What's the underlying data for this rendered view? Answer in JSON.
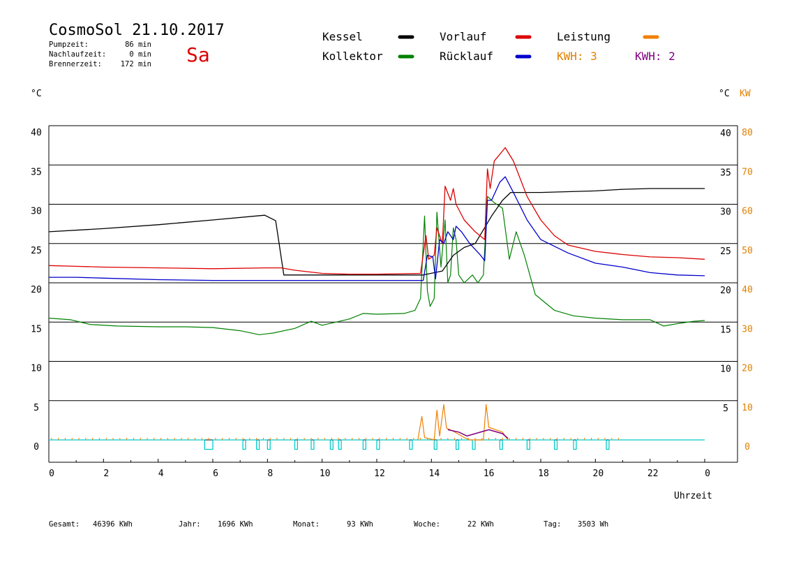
{
  "header": {
    "title": "CosmoSol 21.10.2017",
    "day": "Sa",
    "stats": [
      {
        "label": "Pumpzeit:",
        "value": "86 min"
      },
      {
        "label": "Nachlaufzeit:",
        "value": "0 min"
      },
      {
        "label": "Brennerzeit:",
        "value": "172 min"
      }
    ]
  },
  "legend": {
    "kessel": {
      "label": "Kessel",
      "color": "#000000"
    },
    "vorlauf": {
      "label": "Vorlauf",
      "color": "#dd0000"
    },
    "leistung": {
      "label": "Leistung",
      "color": "#f08000"
    },
    "kollektor": {
      "label": "Kollektor",
      "color": "#008000"
    },
    "ruecklauf": {
      "label": "Rücklauf",
      "color": "#0000cc"
    },
    "kwh1": {
      "label": "KWH: 3",
      "color": "#e08000"
    },
    "kwh2": {
      "label": "KWH: 2",
      "color": "#800080"
    }
  },
  "axes": {
    "left_unit": "°C",
    "right_unit_temp": "°C",
    "right_unit_power": "KW",
    "xlabel": "Uhrzeit"
  },
  "footer": {
    "gesamt": {
      "label": "Gesamt:",
      "value": "46396 KWh"
    },
    "jahr": {
      "label": "Jahr:",
      "value": "1696 KWh"
    },
    "monat": {
      "label": "Monat:",
      "value": "93 KWh"
    },
    "woche": {
      "label": "Woche:",
      "value": "22 KWh"
    },
    "tag": {
      "label": "Tag:",
      "value": "3503 Wh"
    }
  },
  "chart_data": {
    "type": "line",
    "x_ticks": [
      "0",
      "2",
      "4",
      "6",
      "8",
      "10",
      "12",
      "14",
      "16",
      "18",
      "20",
      "22",
      "0"
    ],
    "x_range": [
      0,
      24
    ],
    "y_ticks_left": [
      "0",
      "5",
      "10",
      "15",
      "20",
      "25",
      "30",
      "35",
      "40"
    ],
    "y_ticks_right_temp": [
      "5",
      "10",
      "15",
      "20",
      "25",
      "30",
      "35",
      "40"
    ],
    "y_ticks_right_power": [
      "0",
      "10",
      "20",
      "30",
      "40",
      "50",
      "60",
      "70",
      "80"
    ],
    "ylim": [
      0,
      40
    ],
    "grid": true,
    "colors": {
      "kessel": "#000000",
      "vorlauf": "#dd0000",
      "ruecklauf": "#0000cc",
      "kollektor": "#008000",
      "leistung": "#f08000",
      "kwh": "#800080",
      "pumpe": "#00cccc"
    },
    "series": {
      "kessel": [
        [
          0,
          26.5
        ],
        [
          2,
          26.9
        ],
        [
          4,
          27.4
        ],
        [
          6,
          28
        ],
        [
          7.9,
          28.6
        ],
        [
          8.3,
          27.9
        ],
        [
          8.6,
          21
        ],
        [
          10,
          21
        ],
        [
          12,
          21
        ],
        [
          13.7,
          21
        ],
        [
          14.4,
          21.5
        ],
        [
          14.8,
          23.5
        ],
        [
          15.2,
          24.5
        ],
        [
          15.6,
          25
        ],
        [
          16.2,
          28.5
        ],
        [
          16.6,
          30.5
        ],
        [
          16.9,
          31.5
        ],
        [
          18,
          31.5
        ],
        [
          20,
          31.7
        ],
        [
          21,
          31.9
        ],
        [
          22,
          32
        ],
        [
          24,
          32
        ]
      ],
      "vorlauf": [
        [
          0,
          22.2
        ],
        [
          1,
          22.1
        ],
        [
          2,
          22
        ],
        [
          4,
          21.9
        ],
        [
          6,
          21.8
        ],
        [
          8,
          21.9
        ],
        [
          8.5,
          21.9
        ],
        [
          9,
          21.6
        ],
        [
          10,
          21.2
        ],
        [
          11,
          21.1
        ],
        [
          12,
          21.1
        ],
        [
          13.6,
          21.2
        ],
        [
          13.8,
          26
        ],
        [
          13.9,
          23
        ],
        [
          14.1,
          23.5
        ],
        [
          14.2,
          27
        ],
        [
          14.4,
          25
        ],
        [
          14.5,
          32.3
        ],
        [
          14.7,
          30.5
        ],
        [
          14.8,
          32
        ],
        [
          14.9,
          30
        ],
        [
          15.2,
          28
        ],
        [
          15.6,
          26.5
        ],
        [
          15.95,
          25.5
        ],
        [
          16.05,
          34.5
        ],
        [
          16.15,
          32
        ],
        [
          16.3,
          35.5
        ],
        [
          16.7,
          37.2
        ],
        [
          17,
          35.5
        ],
        [
          17.5,
          31
        ],
        [
          18,
          28
        ],
        [
          18.5,
          26
        ],
        [
          19,
          24.8
        ],
        [
          20,
          24
        ],
        [
          21,
          23.6
        ],
        [
          22,
          23.3
        ],
        [
          23,
          23.2
        ],
        [
          24,
          23
        ]
      ],
      "ruecklauf": [
        [
          0,
          20.7
        ],
        [
          1,
          20.7
        ],
        [
          2,
          20.6
        ],
        [
          4,
          20.4
        ],
        [
          6,
          20.3
        ],
        [
          8,
          20.3
        ],
        [
          10,
          20.3
        ],
        [
          12,
          20.3
        ],
        [
          13.7,
          20.3
        ],
        [
          13.85,
          23.5
        ],
        [
          14.05,
          23.3
        ],
        [
          14.15,
          20.5
        ],
        [
          14.3,
          25.5
        ],
        [
          14.45,
          25
        ],
        [
          14.6,
          26.5
        ],
        [
          14.8,
          25.5
        ],
        [
          14.9,
          27.2
        ],
        [
          15.1,
          26.5
        ],
        [
          15.4,
          25
        ],
        [
          15.8,
          23.5
        ],
        [
          15.95,
          22.8
        ],
        [
          16.05,
          30.5
        ],
        [
          16.2,
          30.5
        ],
        [
          16.5,
          32.8
        ],
        [
          16.7,
          33.5
        ],
        [
          17,
          31.5
        ],
        [
          17.5,
          28
        ],
        [
          18,
          25.5
        ],
        [
          19,
          23.8
        ],
        [
          20,
          22.5
        ],
        [
          21,
          22
        ],
        [
          22,
          21.3
        ],
        [
          23,
          21
        ],
        [
          24,
          20.9
        ]
      ],
      "kollektor": [
        [
          0,
          15.5
        ],
        [
          0.8,
          15.3
        ],
        [
          1.5,
          14.7
        ],
        [
          2.5,
          14.5
        ],
        [
          4,
          14.4
        ],
        [
          5,
          14.4
        ],
        [
          6,
          14.3
        ],
        [
          7,
          13.9
        ],
        [
          7.7,
          13.4
        ],
        [
          8.2,
          13.6
        ],
        [
          9,
          14.2
        ],
        [
          9.6,
          15.1
        ],
        [
          10,
          14.6
        ],
        [
          10.5,
          15
        ],
        [
          11,
          15.4
        ],
        [
          11.5,
          16.1
        ],
        [
          12,
          16
        ],
        [
          13,
          16.1
        ],
        [
          13.4,
          16.5
        ],
        [
          13.6,
          18
        ],
        [
          13.75,
          28.5
        ],
        [
          13.85,
          19
        ],
        [
          13.95,
          17
        ],
        [
          14.1,
          18
        ],
        [
          14.2,
          29
        ],
        [
          14.35,
          22
        ],
        [
          14.5,
          28
        ],
        [
          14.6,
          20
        ],
        [
          14.7,
          21
        ],
        [
          14.8,
          27
        ],
        [
          14.9,
          25.5
        ],
        [
          15,
          21
        ],
        [
          15.2,
          20
        ],
        [
          15.5,
          21
        ],
        [
          15.7,
          20
        ],
        [
          15.9,
          21
        ],
        [
          16.05,
          31
        ],
        [
          16.3,
          30.2
        ],
        [
          16.6,
          29.5
        ],
        [
          16.85,
          23
        ],
        [
          17.1,
          26.5
        ],
        [
          17.4,
          23.5
        ],
        [
          17.8,
          18.5
        ],
        [
          18.5,
          16.5
        ],
        [
          19.2,
          15.8
        ],
        [
          20,
          15.5
        ],
        [
          21,
          15.3
        ],
        [
          22,
          15.3
        ],
        [
          22.5,
          14.5
        ],
        [
          23,
          14.8
        ],
        [
          23.6,
          15.1
        ],
        [
          24,
          15.2
        ]
      ],
      "leistung": [
        [
          13.5,
          0
        ],
        [
          13.65,
          3
        ],
        [
          13.75,
          0.3
        ],
        [
          14.1,
          0
        ],
        [
          14.2,
          3.8
        ],
        [
          14.3,
          0.5
        ],
        [
          14.45,
          4.5
        ],
        [
          14.55,
          1.5
        ],
        [
          14.8,
          1.1
        ],
        [
          15.2,
          0.3
        ],
        [
          15.4,
          0
        ],
        [
          15.9,
          0
        ],
        [
          16.0,
          4.5
        ],
        [
          16.1,
          1.6
        ],
        [
          16.6,
          1
        ],
        [
          16.8,
          0
        ]
      ],
      "kwh": [
        [
          14.6,
          1.3
        ],
        [
          15,
          1
        ],
        [
          15.3,
          0.5
        ],
        [
          16.1,
          1.3
        ],
        [
          16.6,
          0.8
        ],
        [
          16.8,
          0.2
        ]
      ],
      "pumpe": [
        [
          0,
          0
        ],
        [
          5.7,
          0
        ],
        [
          5.7,
          -1.2
        ],
        [
          6.0,
          -1.2
        ],
        [
          6.0,
          0
        ],
        [
          7.1,
          0
        ],
        [
          7.1,
          -1.2
        ],
        [
          7.2,
          -1.2
        ],
        [
          7.2,
          0
        ],
        [
          7.6,
          0
        ],
        [
          7.6,
          -1.2
        ],
        [
          7.7,
          -1.2
        ],
        [
          7.7,
          0
        ],
        [
          8.0,
          0
        ],
        [
          8.0,
          -1.2
        ],
        [
          8.1,
          -1.2
        ],
        [
          8.1,
          0
        ],
        [
          9.0,
          0
        ],
        [
          9.0,
          -1.2
        ],
        [
          9.1,
          -1.2
        ],
        [
          9.1,
          0
        ],
        [
          9.6,
          0
        ],
        [
          9.6,
          -1.2
        ],
        [
          9.7,
          -1.2
        ],
        [
          9.7,
          0
        ],
        [
          10.3,
          0
        ],
        [
          10.3,
          -1.2
        ],
        [
          10.4,
          -1.2
        ],
        [
          10.4,
          0
        ],
        [
          10.6,
          0
        ],
        [
          10.6,
          -1.2
        ],
        [
          10.7,
          -1.2
        ],
        [
          10.7,
          0
        ],
        [
          11.5,
          0
        ],
        [
          11.5,
          -1.2
        ],
        [
          11.6,
          -1.2
        ],
        [
          11.6,
          0
        ],
        [
          12.0,
          0
        ],
        [
          12.0,
          -1.2
        ],
        [
          12.1,
          -1.2
        ],
        [
          12.1,
          0
        ],
        [
          13.2,
          0
        ],
        [
          13.2,
          -1.2
        ],
        [
          13.3,
          -1.2
        ],
        [
          13.3,
          0
        ],
        [
          14.1,
          0
        ],
        [
          14.1,
          -1.2
        ],
        [
          14.2,
          -1.2
        ],
        [
          14.2,
          0
        ],
        [
          14.9,
          0
        ],
        [
          14.9,
          -1.2
        ],
        [
          15.0,
          -1.2
        ],
        [
          15.0,
          0
        ],
        [
          15.5,
          0
        ],
        [
          15.5,
          -1.2
        ],
        [
          15.6,
          -1.2
        ],
        [
          15.6,
          0
        ],
        [
          16.5,
          0
        ],
        [
          16.5,
          -1.2
        ],
        [
          16.6,
          -1.2
        ],
        [
          16.6,
          0
        ],
        [
          17.5,
          0
        ],
        [
          17.5,
          -1.2
        ],
        [
          17.6,
          -1.2
        ],
        [
          17.6,
          0
        ],
        [
          18.5,
          0
        ],
        [
          18.5,
          -1.2
        ],
        [
          18.6,
          -1.2
        ],
        [
          18.6,
          0
        ],
        [
          19.2,
          0
        ],
        [
          19.2,
          -1.2
        ],
        [
          19.3,
          -1.2
        ],
        [
          19.3,
          0
        ],
        [
          20.4,
          0
        ],
        [
          20.4,
          -1.2
        ],
        [
          20.5,
          -1.2
        ],
        [
          20.5,
          0
        ],
        [
          24,
          0
        ]
      ]
    }
  }
}
